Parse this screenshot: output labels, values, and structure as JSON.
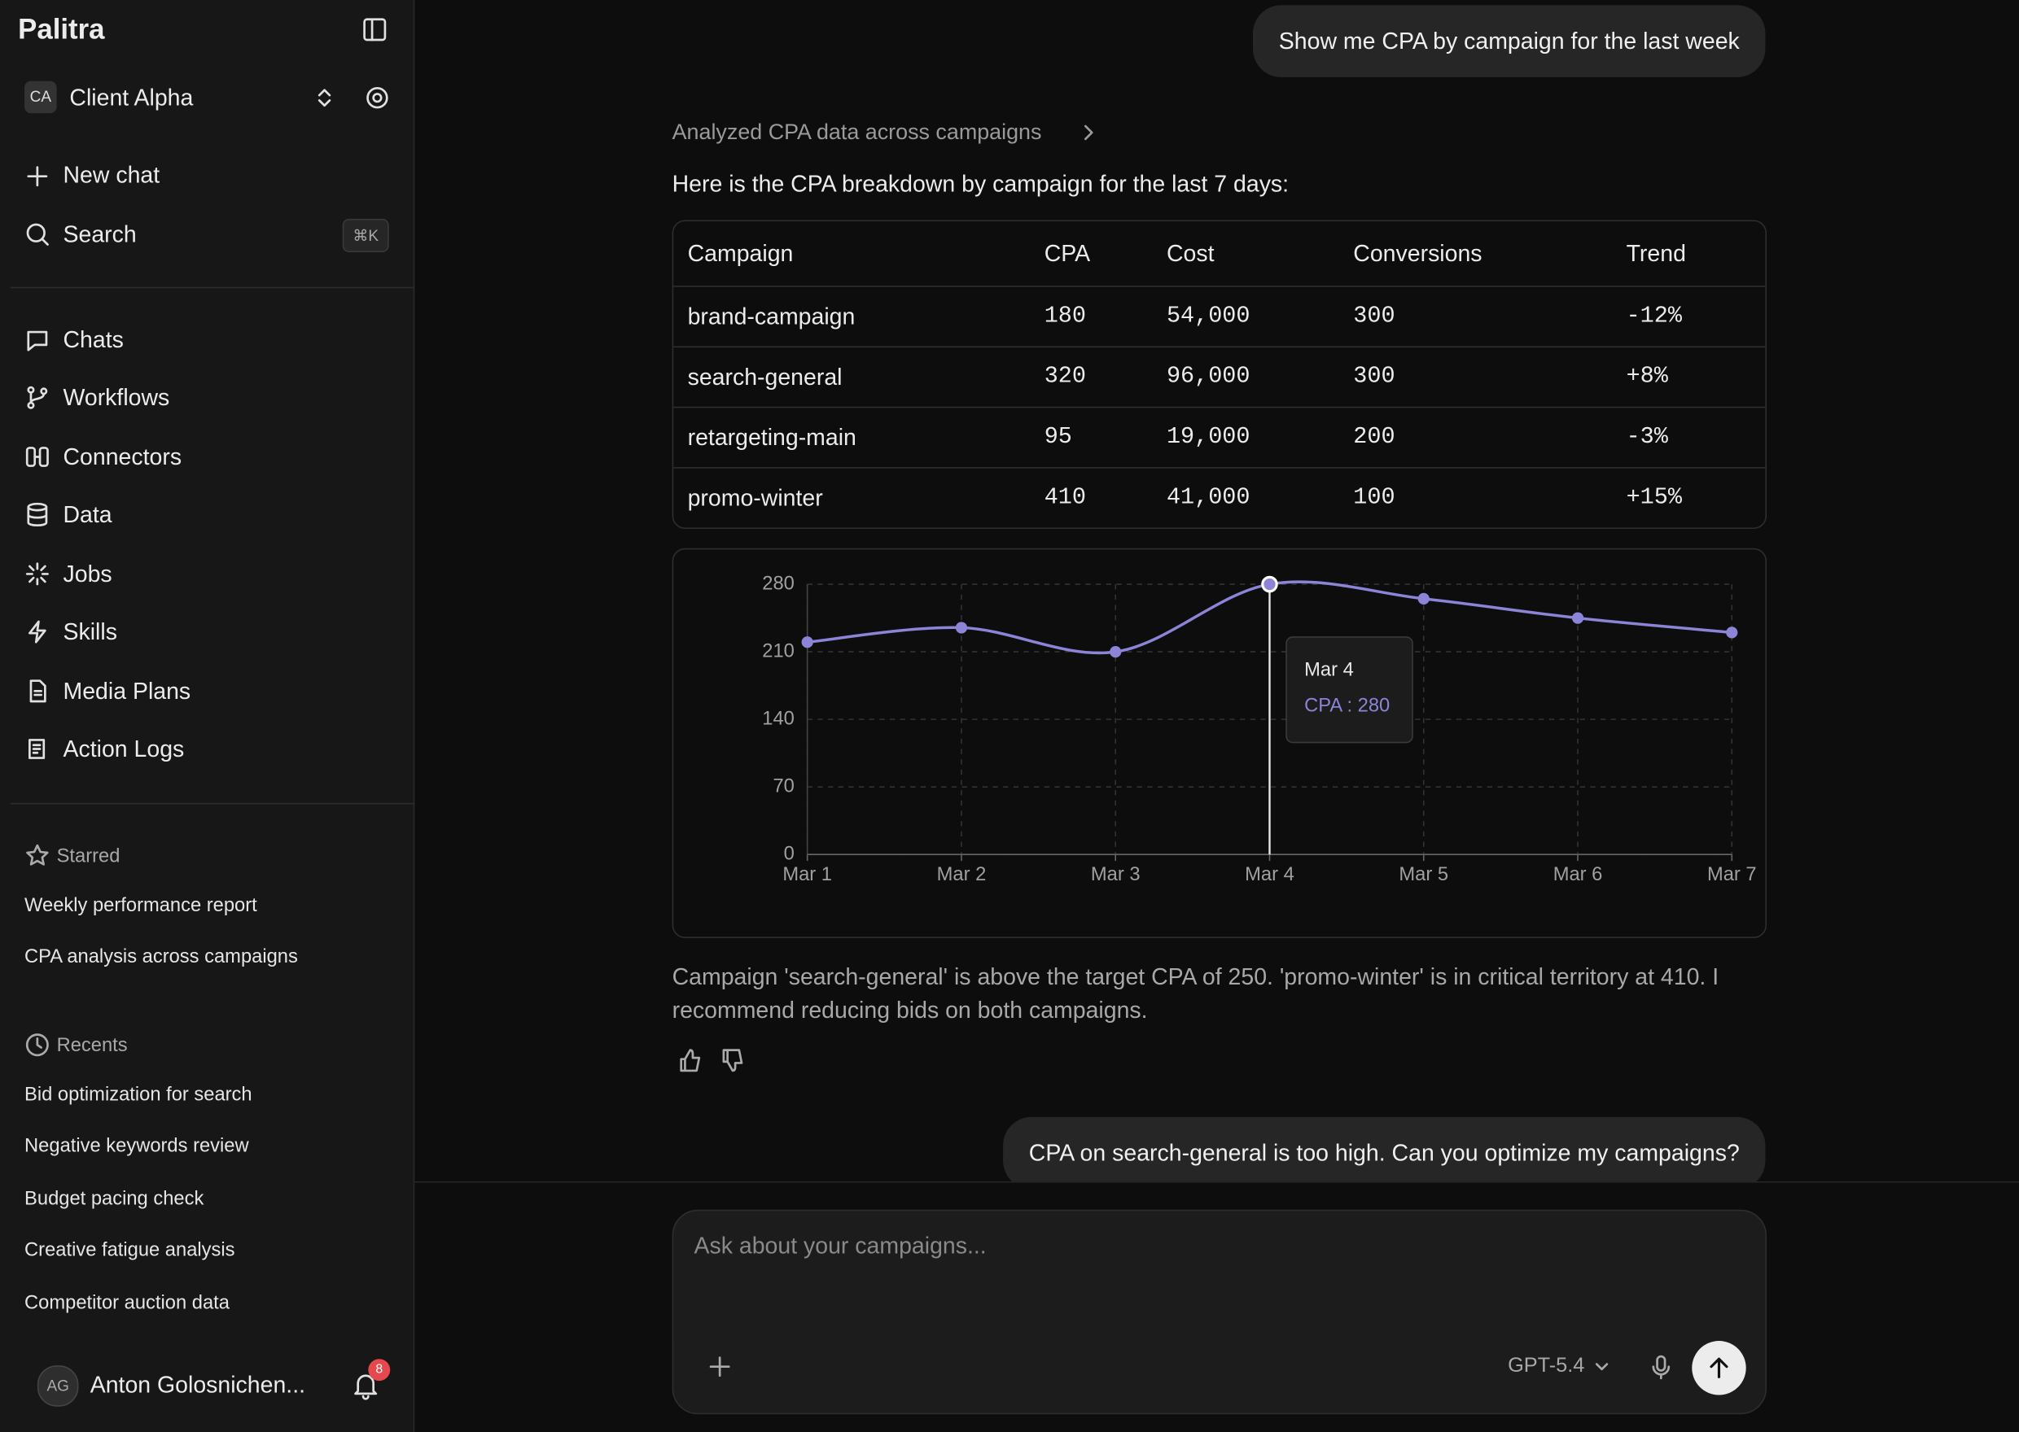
{
  "sidebar": {
    "brand": "Palitra",
    "workspace": {
      "initials": "CA",
      "name": "Client Alpha"
    },
    "new_chat": "New chat",
    "search": {
      "label": "Search",
      "shortcut": "⌘K"
    },
    "nav": [
      "Chats",
      "Workflows",
      "Connectors",
      "Data",
      "Jobs",
      "Skills",
      "Media Plans",
      "Action Logs"
    ],
    "starred": {
      "title": "Starred",
      "items": [
        "Weekly performance report",
        "CPA analysis across campaigns"
      ]
    },
    "recents": {
      "title": "Recents",
      "items": [
        "Bid optimization for search",
        "Negative keywords review",
        "Budget pacing check",
        "Creative fatigue analysis",
        "Competitor auction data"
      ]
    },
    "user": {
      "initials": "AG",
      "name": "Anton Golosnichen...",
      "notifications": "8"
    }
  },
  "chat": {
    "user_message_1": "Show me CPA by campaign for the last week",
    "reasoning": "Analyzed CPA data across campaigns",
    "intro": "Here is the CPA breakdown by campaign for the last 7 days:",
    "table": {
      "columns": [
        "Campaign",
        "CPA",
        "Cost",
        "Conversions",
        "Trend"
      ],
      "rows": [
        [
          "brand-campaign",
          "180",
          "54,000",
          "300",
          "-12%"
        ],
        [
          "search-general",
          "320",
          "96,000",
          "300",
          "+8%"
        ],
        [
          "retargeting-main",
          "95",
          "19,000",
          "200",
          "-3%"
        ],
        [
          "promo-winter",
          "410",
          "41,000",
          "100",
          "+15%"
        ]
      ]
    },
    "chart": {
      "type": "line",
      "categories": [
        "Mar 1",
        "Mar 2",
        "Mar 3",
        "Mar 4",
        "Mar 5",
        "Mar 6",
        "Mar 7"
      ],
      "series": [
        {
          "name": "CPA",
          "color": "#8b84d7",
          "values": [
            220,
            235,
            210,
            280,
            265,
            245,
            230
          ]
        }
      ],
      "ylim": [
        0,
        280
      ],
      "yticks": [
        0,
        70,
        140,
        210,
        280
      ],
      "grid": true,
      "tooltip": {
        "title": "Mar 4",
        "label": "CPA : 280"
      }
    },
    "conclusion": "Campaign 'search-general' is above the target CPA of 250. 'promo-winter' is in critical territory at 410. I recommend reducing bids on both campaigns.",
    "user_message_2": "CPA on search-general is too high. Can you optimize my campaigns?"
  },
  "composer": {
    "placeholder": "Ask about your campaigns...",
    "model": "GPT-5.4"
  }
}
